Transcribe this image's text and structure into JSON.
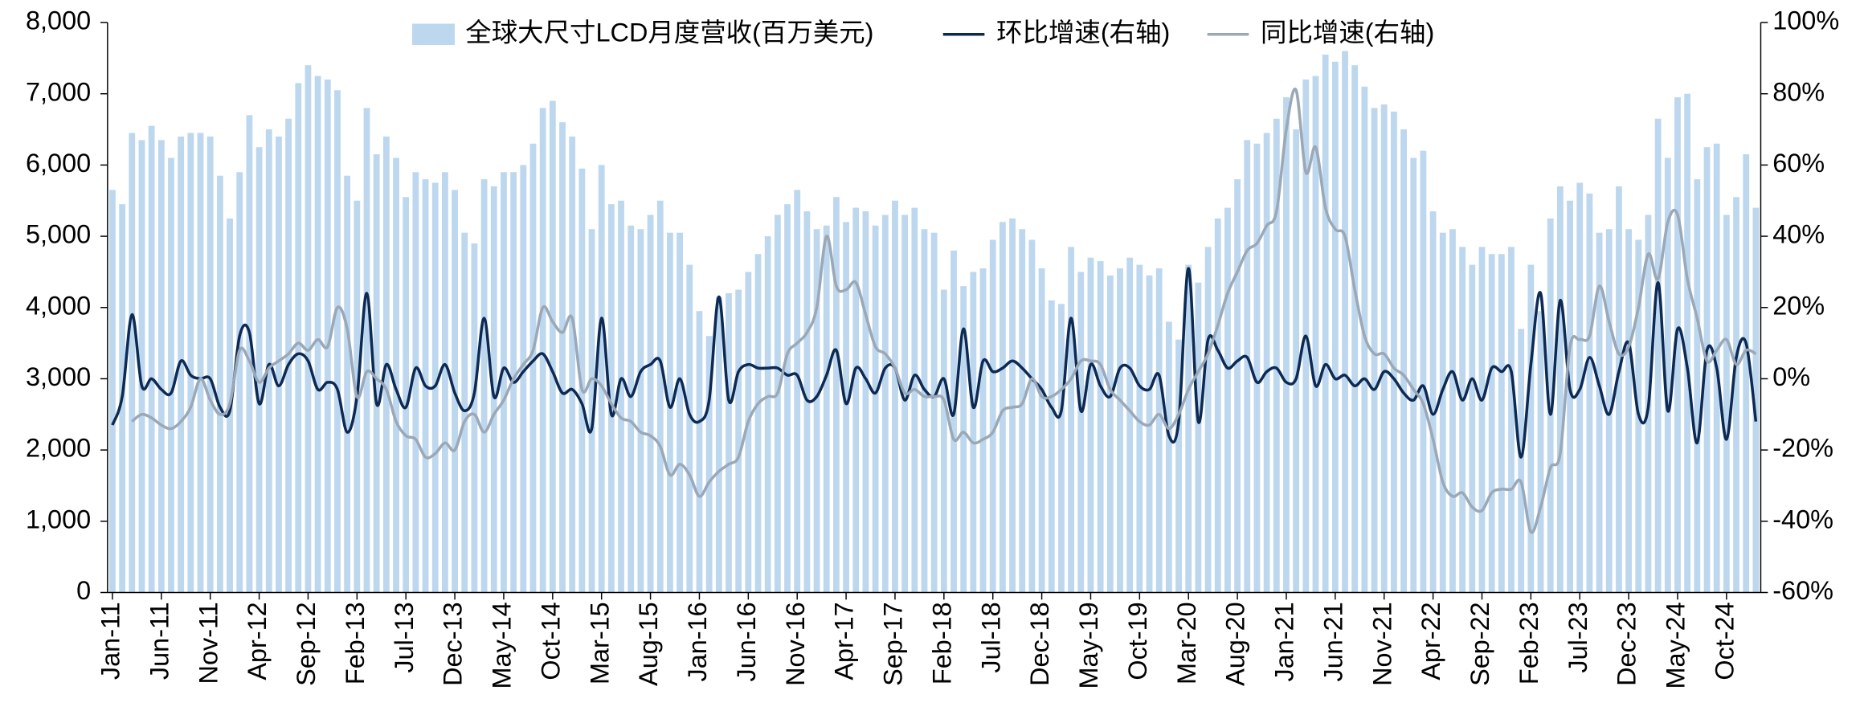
{
  "chart_data": {
    "type": "bar",
    "categories": [
      "Jan-11",
      null,
      null,
      null,
      null,
      "Jun-11",
      null,
      null,
      null,
      null,
      "Nov-11",
      null,
      null,
      null,
      null,
      "Apr-12",
      null,
      null,
      null,
      null,
      "Sep-12",
      null,
      null,
      null,
      null,
      "Feb-13",
      null,
      null,
      null,
      null,
      "Jul-13",
      null,
      null,
      null,
      null,
      "Dec-13",
      null,
      null,
      null,
      null,
      "May-14",
      null,
      null,
      null,
      null,
      "Oct-14",
      null,
      null,
      null,
      null,
      "Mar-15",
      null,
      null,
      null,
      null,
      "Aug-15",
      null,
      null,
      null,
      null,
      "Jan-16",
      null,
      null,
      null,
      null,
      "Jun-16",
      null,
      null,
      null,
      null,
      "Nov-16",
      null,
      null,
      null,
      null,
      "Apr-17",
      null,
      null,
      null,
      null,
      "Sep-17",
      null,
      null,
      null,
      null,
      "Feb-18",
      null,
      null,
      null,
      null,
      "Jul-18",
      null,
      null,
      null,
      null,
      "Dec-18",
      null,
      null,
      null,
      null,
      "May-19",
      null,
      null,
      null,
      null,
      "Oct-19",
      null,
      null,
      null,
      null,
      "Mar-20",
      null,
      null,
      null,
      null,
      "Aug-20",
      null,
      null,
      null,
      null,
      "Jan-21",
      null,
      null,
      null,
      null,
      "Jun-21",
      null,
      null,
      null,
      null,
      "Nov-21",
      null,
      null,
      null,
      null,
      "Apr-22",
      null,
      null,
      null,
      null,
      "Sep-22",
      null,
      null,
      null,
      null,
      "Feb-23",
      null,
      null,
      null,
      null,
      "Jul-23",
      null,
      null,
      null,
      null,
      "Dec-23",
      null,
      null,
      null,
      null,
      "May-24",
      null,
      null,
      null,
      null,
      "Oct-24",
      null,
      null,
      null
    ],
    "series": [
      {
        "name": "全球大尺寸LCD月度营收(百万美元)",
        "type": "bar",
        "color": "#bdd7ee",
        "values": [
          5650,
          5450,
          6450,
          6350,
          6550,
          6350,
          6100,
          6400,
          6450,
          6450,
          6400,
          5850,
          5250,
          5900,
          6700,
          6250,
          6500,
          6400,
          6650,
          7150,
          7400,
          7250,
          7200,
          7050,
          5850,
          5500,
          6800,
          6150,
          6400,
          6100,
          5550,
          5900,
          5800,
          5750,
          5900,
          5650,
          5050,
          4900,
          5800,
          5700,
          5900,
          5900,
          6000,
          6300,
          6800,
          6900,
          6600,
          6400,
          5950,
          5100,
          6000,
          5450,
          5500,
          5150,
          5100,
          5300,
          5500,
          5050,
          5050,
          4600,
          3950,
          3600,
          4150,
          4200,
          4250,
          4500,
          4750,
          5000,
          5300,
          5450,
          5650,
          5350,
          5100,
          5150,
          5550,
          5200,
          5400,
          5350,
          5150,
          5300,
          5500,
          5300,
          5400,
          5100,
          5050,
          4250,
          4800,
          4300,
          4500,
          4550,
          4950,
          5200,
          5250,
          5100,
          4950,
          4550,
          4100,
          4050,
          4850,
          4500,
          4700,
          4650,
          4450,
          4550,
          4700,
          4600,
          4450,
          4550,
          3800,
          3550,
          4600,
          4350,
          4850,
          5250,
          5400,
          5800,
          6350,
          6300,
          6450,
          6650,
          6950,
          6500,
          7200,
          7250,
          7550,
          7450,
          7600,
          7400,
          7100,
          6800,
          6850,
          6750,
          6500,
          6100,
          6200,
          5350,
          5050,
          5100,
          4850,
          4600,
          4850,
          4750,
          4750,
          4850,
          3700,
          4600,
          3950,
          5250,
          5700,
          5500,
          5750,
          5600,
          5050,
          5100,
          5700,
          5100,
          4950,
          5300,
          6650,
          6100,
          6950,
          7000,
          5800,
          6250,
          6300,
          5300,
          5550,
          6150,
          5400
        ]
      },
      {
        "name": "环比增速(右轴)",
        "type": "line",
        "axis": "y2",
        "color": "#0d2a55",
        "values": [
          -13,
          -5,
          18,
          -2,
          0,
          -3,
          -4,
          5,
          1,
          0,
          0,
          -8,
          -9,
          12,
          13,
          -7,
          4,
          -2,
          4,
          7,
          5,
          -3,
          -1,
          -3,
          -15,
          -5,
          24,
          -7,
          4,
          -3,
          -8,
          3,
          -2,
          -2,
          4,
          -4,
          -9,
          -4,
          17,
          -5,
          3,
          -1,
          2,
          5,
          7,
          2,
          -4,
          -3,
          -7,
          -14,
          17,
          -10,
          0,
          -5,
          2,
          4,
          5,
          -8,
          0,
          -10,
          -12,
          -6,
          23,
          -6,
          2,
          4,
          3,
          3,
          3,
          1,
          1,
          -6,
          -5,
          1,
          8,
          -7,
          3,
          0,
          -4,
          3,
          3,
          -6,
          1,
          -3,
          -5,
          0,
          -10,
          14,
          -8,
          5,
          2,
          3,
          5,
          3,
          0,
          -3,
          -8,
          -9,
          17,
          -9,
          4,
          -2,
          -5,
          3,
          3,
          -2,
          -3,
          1,
          -16,
          -12,
          31,
          -12,
          11,
          8,
          3,
          5,
          6,
          -1,
          2,
          3,
          -1,
          0,
          12,
          -2,
          4,
          0,
          1,
          -2,
          0,
          -3,
          2,
          0,
          -4,
          -6,
          -2,
          -10,
          -3,
          2,
          -6,
          0,
          -6,
          3,
          2,
          2,
          -22,
          4,
          24,
          -10,
          22,
          -3,
          -3,
          6,
          -2,
          -10,
          2,
          10,
          -10,
          -8,
          27,
          -9,
          14,
          3,
          -18,
          8,
          3,
          -17,
          6,
          10,
          -12
        ]
      },
      {
        "name": "同比增速(右轴)",
        "type": "line",
        "axis": "y2",
        "color": "#9aa8b8",
        "values": [
          null,
          null,
          -12,
          -10,
          -11,
          -13,
          -14,
          -12,
          -8,
          0,
          -6,
          -10,
          -7,
          8,
          5,
          -1,
          3,
          5,
          7,
          10,
          8,
          11,
          9,
          20,
          14,
          -5,
          2,
          0,
          -3,
          -12,
          -16,
          -17,
          -22,
          -21,
          -18,
          -20,
          -12,
          -10,
          -15,
          -10,
          -6,
          0,
          4,
          8,
          20,
          16,
          13,
          17,
          -3,
          0,
          -2,
          -7,
          -11,
          -12,
          -15,
          -16,
          -19,
          -27,
          -24,
          -27,
          -33,
          -29,
          -26,
          -24,
          -22,
          -12,
          -7,
          -5,
          -4,
          7,
          10,
          13,
          20,
          40,
          26,
          25,
          27,
          18,
          9,
          7,
          3,
          -4,
          -3,
          -5,
          -5,
          -6,
          -17,
          -15,
          -18,
          -17,
          -15,
          -9,
          -8,
          -7,
          0,
          -5,
          -5,
          -3,
          0,
          5,
          5,
          4,
          -3,
          -6,
          -9,
          -12,
          -13,
          -10,
          -14,
          -10,
          -3,
          2,
          7,
          15,
          24,
          30,
          36,
          38,
          43,
          47,
          70,
          81,
          58,
          65,
          48,
          42,
          40,
          25,
          12,
          7,
          7,
          3,
          1,
          -3,
          -7,
          -17,
          -29,
          -33,
          -32,
          -36,
          -37,
          -32,
          -31,
          -31,
          -29,
          -43,
          -36,
          -25,
          -21,
          9,
          11,
          12,
          26,
          16,
          7,
          9,
          20,
          35,
          28,
          44,
          46,
          28,
          17,
          5,
          8,
          11,
          4,
          8,
          7
        ]
      }
    ],
    "ylim": [
      0,
      8000
    ],
    "yticks": [
      0,
      {
        "value": 1000,
        "label": "1,000"
      },
      {
        "value": 2000,
        "label": "2,000"
      },
      {
        "value": 3000,
        "label": "3,000"
      },
      {
        "value": 4000,
        "label": "4,000"
      },
      {
        "value": 5000,
        "label": "5,000"
      },
      {
        "value": 6000,
        "label": "6,000"
      },
      {
        "value": 7000,
        "label": "7,000"
      },
      {
        "value": 8000,
        "label": "8,000"
      }
    ],
    "y2lim": [
      -60,
      100
    ],
    "y2ticks": [
      {
        "value": -60,
        "label": "-60%"
      },
      {
        "value": -40,
        "label": "-40%"
      },
      {
        "value": -20,
        "label": "-20%"
      },
      {
        "value": 0,
        "label": "0%"
      },
      {
        "value": 20,
        "label": "20%"
      },
      {
        "value": 40,
        "label": "40%"
      },
      {
        "value": 60,
        "label": "60%"
      },
      {
        "value": 80,
        "label": "80%"
      },
      {
        "value": 100,
        "label": "100%"
      }
    ],
    "grid": false,
    "legend": "top"
  }
}
